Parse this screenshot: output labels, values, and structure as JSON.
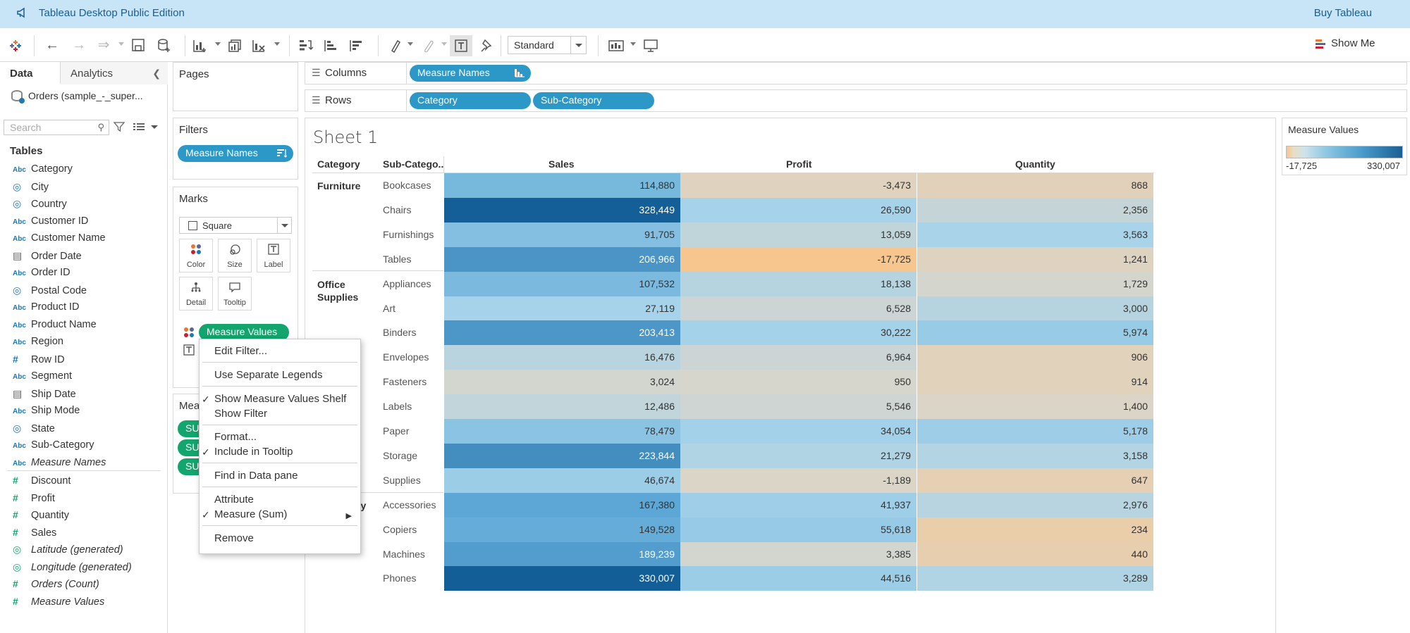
{
  "app": {
    "title": "Tableau Desktop Public Edition",
    "buy_label": "Buy Tableau"
  },
  "toolbar": {
    "fit_select": "Standard",
    "show_me_label": "Show Me"
  },
  "data_pane": {
    "tabs": {
      "data": "Data",
      "analytics": "Analytics"
    },
    "datasource": "Orders (sample_-_super...",
    "search_placeholder": "Search",
    "tables_header": "Tables",
    "dimensions": [
      {
        "icon": "Abc",
        "name": "Category"
      },
      {
        "icon": "globe",
        "name": "City"
      },
      {
        "icon": "globe",
        "name": "Country"
      },
      {
        "icon": "Abc",
        "name": "Customer ID"
      },
      {
        "icon": "Abc",
        "name": "Customer Name"
      },
      {
        "icon": "calendar",
        "name": "Order Date"
      },
      {
        "icon": "Abc",
        "name": "Order ID"
      },
      {
        "icon": "globe",
        "name": "Postal Code"
      },
      {
        "icon": "Abc",
        "name": "Product ID"
      },
      {
        "icon": "Abc",
        "name": "Product Name"
      },
      {
        "icon": "Abc",
        "name": "Region"
      },
      {
        "icon": "#",
        "name": "Row ID"
      },
      {
        "icon": "Abc",
        "name": "Segment"
      },
      {
        "icon": "calendar",
        "name": "Ship Date"
      },
      {
        "icon": "Abc",
        "name": "Ship Mode"
      },
      {
        "icon": "globe",
        "name": "State"
      },
      {
        "icon": "Abc",
        "name": "Sub-Category"
      },
      {
        "icon": "Abc",
        "name": "Measure Names"
      }
    ],
    "measures": [
      {
        "icon": "#",
        "name": "Discount"
      },
      {
        "icon": "#",
        "name": "Profit"
      },
      {
        "icon": "#",
        "name": "Quantity"
      },
      {
        "icon": "#",
        "name": "Sales"
      },
      {
        "icon": "globe",
        "name": "Latitude (generated)"
      },
      {
        "icon": "globe",
        "name": "Longitude (generated)"
      },
      {
        "icon": "#",
        "name": "Orders (Count)"
      },
      {
        "icon": "#",
        "name": "Measure Values"
      }
    ]
  },
  "cards": {
    "pages_title": "Pages",
    "filters_title": "Filters",
    "filters_pill": "Measure Names",
    "marks_title": "Marks",
    "mark_type": "Square",
    "mark_buttons": {
      "color": "Color",
      "size": "Size",
      "label": "Label",
      "detail": "Detail",
      "tooltip": "Tooltip"
    },
    "marks_pill": "Measure Values",
    "measure_values_title": "Meas",
    "measure_values_pills": [
      "SU",
      "SU",
      "SU"
    ]
  },
  "shelves": {
    "columns_label": "Columns",
    "columns_pills": [
      "Measure Names"
    ],
    "rows_label": "Rows",
    "rows_pills": [
      "Category",
      "Sub-Category"
    ]
  },
  "sheet": {
    "title": "Sheet 1",
    "headers": {
      "category": "Category",
      "subcategory": "Sub-Catego..",
      "sales": "Sales",
      "profit": "Profit",
      "quantity": "Quantity"
    },
    "categories": [
      {
        "name": "Furniture"
      },
      {
        "name": "Office Supplies"
      },
      {
        "name": "gy"
      }
    ],
    "rows": [
      {
        "sub": "Bookcases",
        "sales": "114,880",
        "profit": "-3,473",
        "quantity": "868",
        "sales_v": 114880,
        "profit_v": -3473,
        "quantity_v": 868
      },
      {
        "sub": "Chairs",
        "sales": "328,449",
        "profit": "26,590",
        "quantity": "2,356",
        "sales_v": 328449,
        "profit_v": 26590,
        "quantity_v": 2356
      },
      {
        "sub": "Furnishings",
        "sales": "91,705",
        "profit": "13,059",
        "quantity": "3,563",
        "sales_v": 91705,
        "profit_v": 13059,
        "quantity_v": 3563
      },
      {
        "sub": "Tables",
        "sales": "206,966",
        "profit": "-17,725",
        "quantity": "1,241",
        "sales_v": 206966,
        "profit_v": -17725,
        "quantity_v": 1241
      },
      {
        "sub": "Appliances",
        "sales": "107,532",
        "profit": "18,138",
        "quantity": "1,729",
        "sales_v": 107532,
        "profit_v": 18138,
        "quantity_v": 1729
      },
      {
        "sub": "Art",
        "sales": "27,119",
        "profit": "6,528",
        "quantity": "3,000",
        "sales_v": 27119,
        "profit_v": 6528,
        "quantity_v": 3000
      },
      {
        "sub": "Binders",
        "sales": "203,413",
        "profit": "30,222",
        "quantity": "5,974",
        "sales_v": 203413,
        "profit_v": 30222,
        "quantity_v": 5974
      },
      {
        "sub": "Envelopes",
        "sales": "16,476",
        "profit": "6,964",
        "quantity": "906",
        "sales_v": 16476,
        "profit_v": 6964,
        "quantity_v": 906
      },
      {
        "sub": "Fasteners",
        "sales": "3,024",
        "profit": "950",
        "quantity": "914",
        "sales_v": 3024,
        "profit_v": 950,
        "quantity_v": 914
      },
      {
        "sub": "Labels",
        "sales": "12,486",
        "profit": "5,546",
        "quantity": "1,400",
        "sales_v": 12486,
        "profit_v": 5546,
        "quantity_v": 1400
      },
      {
        "sub": "Paper",
        "sales": "78,479",
        "profit": "34,054",
        "quantity": "5,178",
        "sales_v": 78479,
        "profit_v": 34054,
        "quantity_v": 5178
      },
      {
        "sub": "Storage",
        "sales": "223,844",
        "profit": "21,279",
        "quantity": "3,158",
        "sales_v": 223844,
        "profit_v": 21279,
        "quantity_v": 3158
      },
      {
        "sub": "Supplies",
        "sales": "46,674",
        "profit": "-1,189",
        "quantity": "647",
        "sales_v": 46674,
        "profit_v": -1189,
        "quantity_v": 647
      },
      {
        "sub": "Accessories",
        "sales": "167,380",
        "profit": "41,937",
        "quantity": "2,976",
        "sales_v": 167380,
        "profit_v": 41937,
        "quantity_v": 2976
      },
      {
        "sub": "Copiers",
        "sales": "149,528",
        "profit": "55,618",
        "quantity": "234",
        "sales_v": 149528,
        "profit_v": 55618,
        "quantity_v": 234
      },
      {
        "sub": "Machines",
        "sales": "189,239",
        "profit": "3,385",
        "quantity": "440",
        "sales_v": 189239,
        "profit_v": 3385,
        "quantity_v": 440
      },
      {
        "sub": "Phones",
        "sales": "330,007",
        "profit": "44,516",
        "quantity": "3,289",
        "sales_v": 330007,
        "profit_v": 44516,
        "quantity_v": 3289
      }
    ]
  },
  "legend": {
    "title": "Measure Values",
    "min": "-17,725",
    "max": "330,007",
    "min_value": -17725,
    "max_value": 330007
  },
  "context_menu": {
    "items": [
      {
        "label": "Edit Filter...",
        "checked": false
      },
      {
        "label": "Use Separate Legends",
        "checked": false
      },
      {
        "label": "Show Measure Values Shelf",
        "checked": true
      },
      {
        "label": "Show Filter",
        "checked": false
      },
      {
        "label": "Format...",
        "checked": false
      },
      {
        "label": "Include in Tooltip",
        "checked": true
      },
      {
        "label": "Find in Data pane",
        "checked": false
      },
      {
        "label": "Attribute",
        "checked": false
      },
      {
        "label": "Measure (Sum)",
        "checked": true,
        "submenu": true
      },
      {
        "label": "Remove",
        "checked": false
      }
    ]
  },
  "colors": {
    "accent": "#2b98c8",
    "measure_pill": "#12a56d",
    "titlebar": "#c8e4f7",
    "low": "#f7c68f",
    "mid": "#d9d6cb",
    "high": "#135e96"
  }
}
